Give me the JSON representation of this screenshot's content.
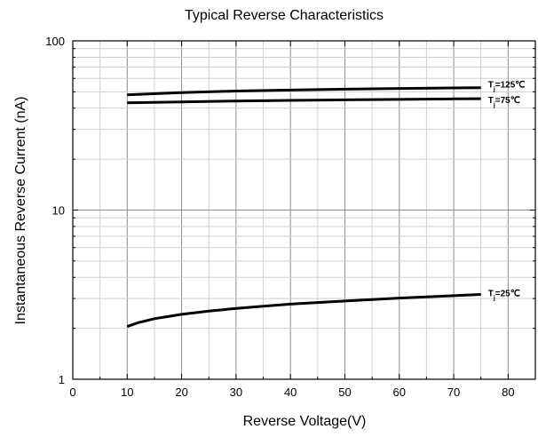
{
  "chart_data": {
    "type": "line",
    "title": "Typical Reverse Characteristics",
    "xlabel": "Reverse Voltage(V)",
    "ylabel": "Instantaneous Reverse Current (nA)",
    "xlim": [
      0,
      85
    ],
    "ylim": [
      1,
      100
    ],
    "yscale": "log",
    "grid": true,
    "x_ticks": [
      0,
      10,
      20,
      30,
      40,
      50,
      60,
      70,
      80
    ],
    "x_tick_labels": [
      "0",
      "10",
      "20",
      "30",
      "40",
      "50",
      "60",
      "70",
      "80"
    ],
    "y_ticks": [
      1,
      10,
      100
    ],
    "y_tick_labels": [
      "1",
      "10",
      "100"
    ],
    "series": [
      {
        "name": "Tj=125℃",
        "label_main": "T",
        "label_sub": "j",
        "label_rest": "=125℃",
        "x": [
          10,
          20,
          30,
          40,
          50,
          60,
          70,
          75
        ],
        "y": [
          48,
          49.5,
          50.5,
          51.2,
          51.8,
          52.3,
          52.7,
          52.9
        ]
      },
      {
        "name": "Tj=75℃",
        "label_main": "T",
        "label_sub": "j",
        "label_rest": "=75℃",
        "x": [
          10,
          20,
          30,
          40,
          50,
          60,
          70,
          75
        ],
        "y": [
          43,
          43.6,
          44.1,
          44.5,
          44.8,
          45.1,
          45.4,
          45.5
        ]
      },
      {
        "name": "Tj=25℃",
        "label_main": "T",
        "label_sub": "j",
        "label_rest": "=25℃",
        "x": [
          10,
          12,
          15,
          20,
          25,
          30,
          35,
          40,
          45,
          50,
          55,
          60,
          65,
          70,
          75
        ],
        "y": [
          2.05,
          2.16,
          2.28,
          2.42,
          2.53,
          2.62,
          2.7,
          2.78,
          2.84,
          2.9,
          2.96,
          3.02,
          3.07,
          3.12,
          3.17
        ]
      }
    ]
  }
}
